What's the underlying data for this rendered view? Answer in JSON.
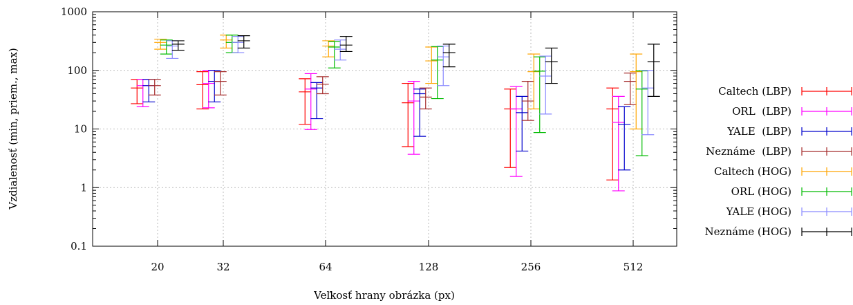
{
  "chart_data": {
    "type": "errorbar",
    "title": "",
    "xlabel": "Veľkosť hrany obrázka (px)",
    "ylabel": "Vzdialenosť (min, priem., max)",
    "yscale": "log",
    "ylim": [
      0.1,
      1000
    ],
    "y_ticks": [
      "0.1",
      "1",
      "10",
      "100",
      "1000"
    ],
    "categories": [
      "20",
      "32",
      "64",
      "128",
      "256",
      "512"
    ],
    "grid": true,
    "legend_position": "right",
    "series": [
      {
        "name": "Caltech (LBP)",
        "color": "#ff0000",
        "min": [
          27,
          22,
          12,
          5,
          2.2,
          1.35
        ],
        "mean": [
          50,
          57,
          43,
          28,
          22,
          22
        ],
        "max": [
          70,
          95,
          72,
          60,
          48,
          50
        ]
      },
      {
        "name": "ORL  (LBP)",
        "color": "#ff00ff",
        "min": [
          24,
          23,
          9.8,
          3.7,
          1.55,
          0.88
        ],
        "mean": [
          55,
          60,
          48,
          30,
          22,
          13
        ],
        "max": [
          70,
          100,
          88,
          65,
          53,
          36
        ]
      },
      {
        "name": "YALE  (LBP)",
        "color": "#0000cc",
        "min": [
          29,
          29,
          15,
          7.5,
          4.2,
          2.0
        ],
        "mean": [
          55,
          65,
          50,
          40,
          19,
          12
        ],
        "max": [
          70,
          100,
          62,
          48,
          36,
          24
        ]
      },
      {
        "name": "Neznáme  (LBP)",
        "color": "#a52a2a",
        "min": [
          38,
          38,
          40,
          22,
          14,
          26
        ],
        "mean": [
          55,
          65,
          58,
          35,
          30,
          65
        ],
        "max": [
          70,
          95,
          78,
          50,
          65,
          90
        ]
      },
      {
        "name": "Caltech (HOG)",
        "color": "#ffa500",
        "min": [
          230,
          240,
          170,
          60,
          22,
          10
        ],
        "mean": [
          300,
          330,
          260,
          145,
          95,
          95
        ],
        "max": [
          340,
          400,
          320,
          250,
          190,
          190
        ]
      },
      {
        "name": "ORL (HOG)",
        "color": "#00bb00",
        "min": [
          190,
          200,
          110,
          33,
          8.7,
          3.5
        ],
        "mean": [
          270,
          300,
          250,
          150,
          97,
          48
        ],
        "max": [
          330,
          400,
          310,
          255,
          170,
          98
        ]
      },
      {
        "name": "YALE (HOG)",
        "color": "#8a8aff",
        "min": [
          160,
          200,
          150,
          55,
          18,
          8
        ],
        "mean": [
          260,
          300,
          230,
          170,
          80,
          50
        ],
        "max": [
          320,
          380,
          330,
          260,
          175,
          100
        ]
      },
      {
        "name": "Neznáme (HOG)",
        "color": "#000000",
        "min": [
          220,
          240,
          210,
          115,
          60,
          36
        ],
        "mean": [
          280,
          320,
          270,
          200,
          140,
          140
        ],
        "max": [
          320,
          390,
          380,
          280,
          240,
          280
        ]
      }
    ]
  }
}
